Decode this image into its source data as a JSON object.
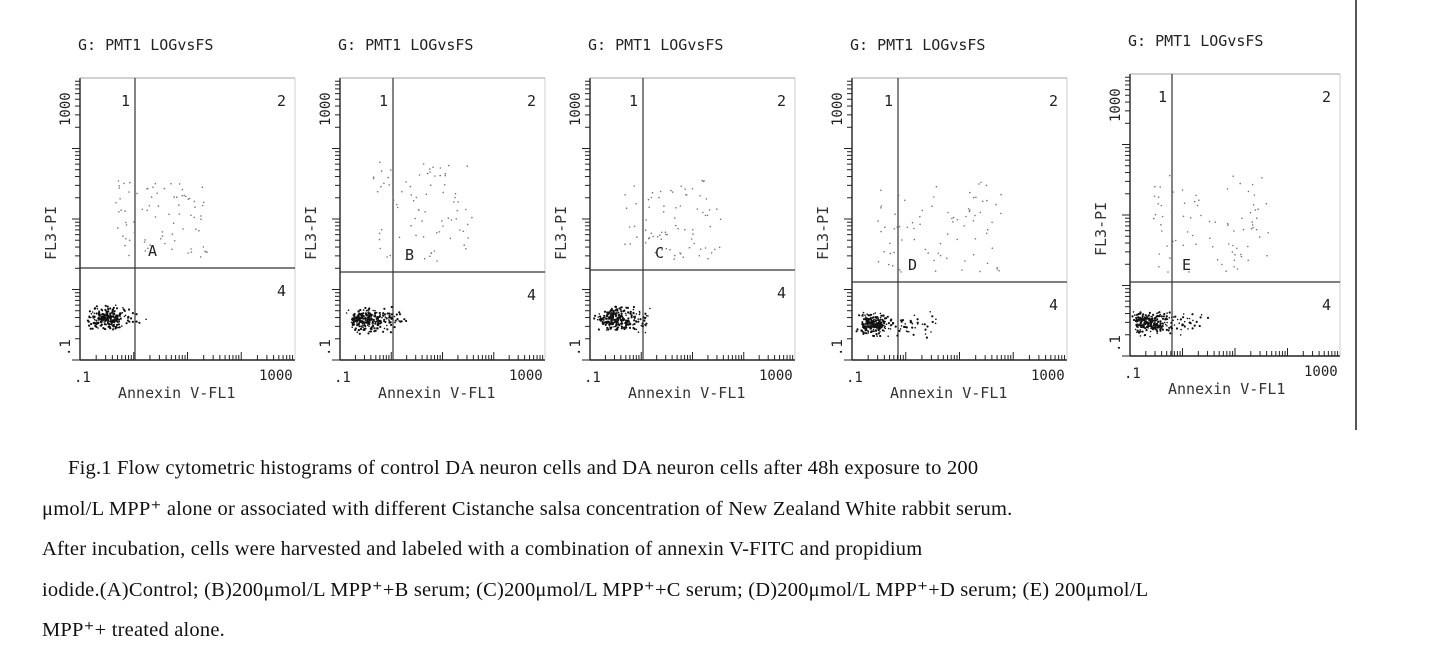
{
  "figure": {
    "panels": [
      {
        "id": "A",
        "gate_title": "G: PMT1 LOGvsFS",
        "y_axis_label": "FL3-PI",
        "x_axis_label": "Annexin V-FL1",
        "y_ticks": [
          ".1",
          "1000"
        ],
        "x_ticks": [
          ".1",
          "1000"
        ],
        "quadrants": [
          "1",
          "2",
          "4"
        ],
        "panel_label": "A"
      },
      {
        "id": "B",
        "gate_title": "G: PMT1 LOGvsFS",
        "y_axis_label": "FL3-PI",
        "x_axis_label": "Annexin V-FL1",
        "y_ticks": [
          ".1",
          "1000"
        ],
        "x_ticks": [
          ".1",
          "1000"
        ],
        "quadrants": [
          "1",
          "2",
          "4"
        ],
        "panel_label": "B"
      },
      {
        "id": "C",
        "gate_title": "G: PMT1 LOGvsFS",
        "y_axis_label": "FL3-PI",
        "x_axis_label": "Annexin V-FL1",
        "y_ticks": [
          ".1",
          "1000"
        ],
        "x_ticks": [
          ".1",
          "1000"
        ],
        "quadrants": [
          "1",
          "2",
          "4"
        ],
        "panel_label": "C"
      },
      {
        "id": "D",
        "gate_title": "G: PMT1 LOGvsFS",
        "y_axis_label": "FL3-PI",
        "x_axis_label": "Annexin V-FL1",
        "y_ticks": [
          ".1",
          "1000"
        ],
        "x_ticks": [
          ".1",
          "1000"
        ],
        "quadrants": [
          "1",
          "2",
          "4"
        ],
        "panel_label": "D"
      },
      {
        "id": "E",
        "gate_title": "G: PMT1 LOGvsFS",
        "y_axis_label": "FL3-PI",
        "x_axis_label": "Annexin V-FL1",
        "y_ticks": [
          ".1",
          "1000"
        ],
        "x_ticks": [
          ".1",
          "1000"
        ],
        "quadrants": [
          "1",
          "2",
          "4"
        ],
        "panel_label": "E"
      }
    ]
  },
  "caption": {
    "line1": "Fig.1 Flow cytometric histograms of control DA neuron cells and DA neuron cells after 48h exposure to 200",
    "line2": "μmol/L MPP⁺ alone or associated with different Cistanche salsa concentration of New Zealand White rabbit serum.",
    "line3": "After incubation, cells were harvested and labeled with a combination of annexin V-FITC and propidium",
    "line4": "iodide.(A)Control; (B)200μmol/L MPP⁺+B serum; (C)200μmol/L MPP⁺+C serum; (D)200μmol/L MPP⁺+D serum; (E) 200μmol/L",
    "line5": "MPP⁺+ treated alone."
  }
}
